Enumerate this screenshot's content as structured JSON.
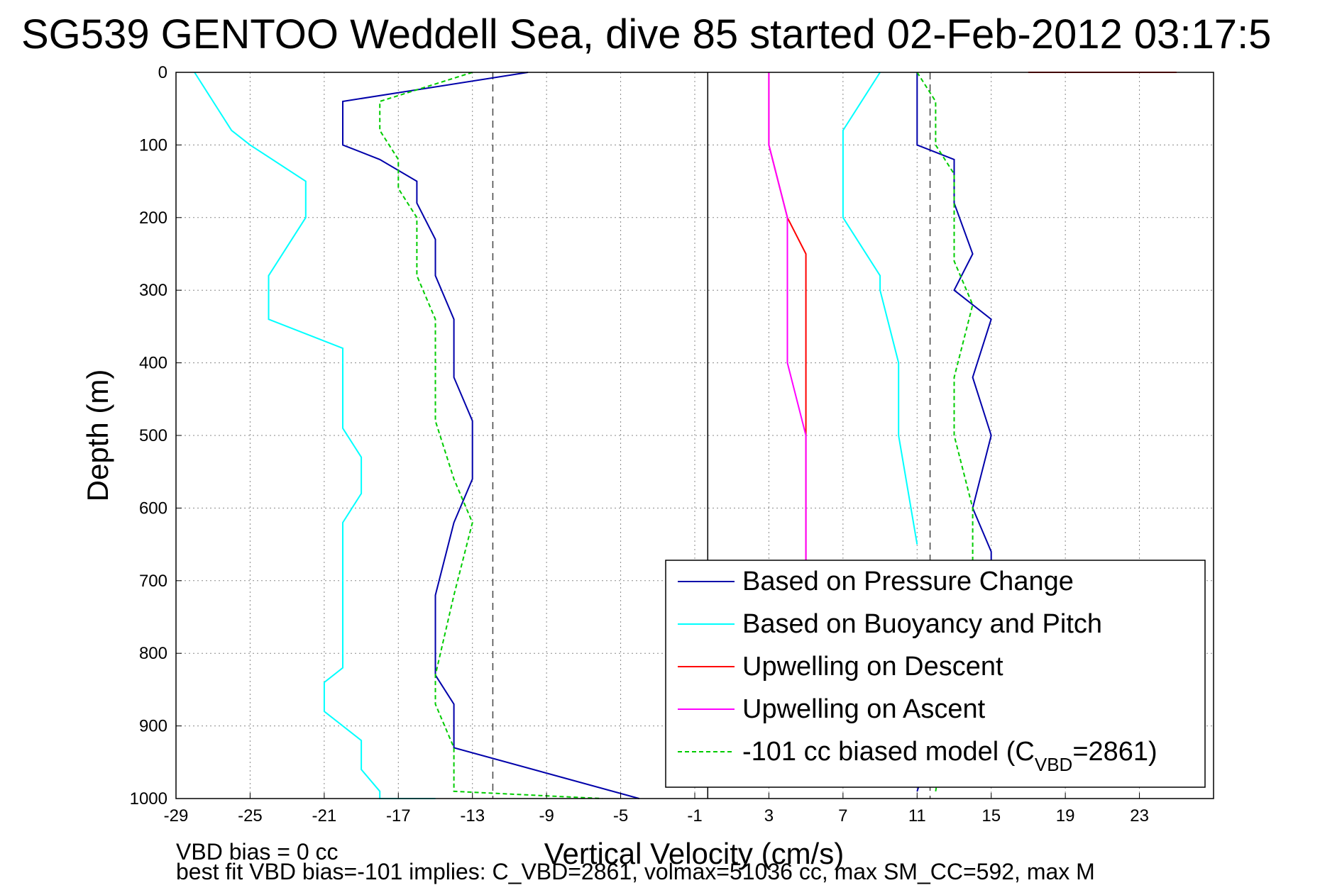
{
  "chart_data": {
    "type": "line",
    "title": "SG539 GENTOO Weddell Sea, dive 85 started 02-Feb-2012 03:17:5",
    "xlabel": "Vertical Velocity (cm/s)",
    "ylabel": "Depth (m)",
    "xlim": [
      -29,
      27
    ],
    "ylim": [
      1000,
      0
    ],
    "x_ticks": [
      -29,
      -25,
      -21,
      -17,
      -13,
      -9,
      -5,
      -1,
      3,
      7,
      11,
      15,
      19,
      23
    ],
    "y_ticks": [
      0,
      100,
      200,
      300,
      400,
      500,
      600,
      700,
      800,
      900,
      1000
    ],
    "grid": true,
    "legend_position": "bottom-right",
    "reference_lines": {
      "solid_x": [
        -0.3
      ],
      "dashed_x": [
        -11.9,
        11.7
      ]
    },
    "series": [
      {
        "name": "Based on Pressure Change",
        "color": "#0000aa",
        "line_style": "solid",
        "segments": [
          {
            "x": [
              -10,
              -20,
              -20,
              -18,
              -16,
              -16,
              -15,
              -15,
              -14,
              -14,
              -13,
              -13,
              -14,
              -15,
              -15,
              -14,
              -14,
              -4
            ],
            "y": [
              0,
              40,
              100,
              120,
              150,
              180,
              230,
              280,
              340,
              420,
              480,
              560,
              620,
              720,
              830,
              870,
              930,
              1000
            ]
          },
          {
            "x": [
              11,
              11,
              13,
              13,
              14,
              13,
              15,
              14,
              15,
              14,
              15,
              15,
              11
            ],
            "y": [
              0,
              100,
              120,
              180,
              250,
              300,
              340,
              420,
              500,
              600,
              660,
              680,
              990
            ]
          }
        ]
      },
      {
        "name": "Based on Buoyancy and Pitch",
        "color": "#00ffff",
        "line_style": "solid",
        "segments": [
          {
            "x": [
              -28,
              -27,
              -26,
              -25,
              -22,
              -22,
              -24,
              -24,
              -20,
              -20,
              -20,
              -19,
              -19,
              -20,
              -20,
              -21,
              -21,
              -19,
              -19,
              -18,
              -18,
              -15
            ],
            "y": [
              0,
              40,
              80,
              100,
              150,
              200,
              280,
              340,
              380,
              460,
              490,
              530,
              580,
              620,
              820,
              840,
              880,
              920,
              960,
              990,
              1000,
              1000
            ]
          },
          {
            "x": [
              9,
              7,
              7,
              9,
              9,
              10,
              10,
              10,
              11
            ],
            "y": [
              0,
              80,
              200,
              280,
              300,
              400,
              430,
              500,
              650
            ]
          }
        ]
      },
      {
        "name": "Upwelling on Descent",
        "color": "#ff0000",
        "line_style": "solid",
        "segments": [
          {
            "x": [
              3,
              3,
              4,
              5,
              5,
              5,
              5,
              5,
              5,
              5,
              5
            ],
            "y": [
              0,
              100,
              200,
              250,
              300,
              400,
              500,
              550,
              600,
              650,
              680
            ]
          },
          {
            "x": [
              17,
              25
            ],
            "y": [
              0,
              0
            ]
          }
        ]
      },
      {
        "name": "Upwelling on Ascent",
        "color": "#ff00ff",
        "line_style": "solid",
        "segments": [
          {
            "x": [
              3,
              3,
              4,
              4,
              4,
              5,
              5,
              5
            ],
            "y": [
              0,
              100,
              200,
              300,
              400,
              500,
              600,
              680
            ]
          }
        ]
      },
      {
        "name": "-101 cc biased model (C",
        "name_sub": "VBD",
        "name_suffix": "=2861)",
        "color": "#00cc00",
        "line_style": "dashed",
        "segments": [
          {
            "x": [
              -13,
              -18,
              -18,
              -17,
              -17,
              -16,
              -16,
              -15,
              -15,
              -15,
              -14,
              -13,
              -14,
              -15,
              -15,
              -14,
              -14,
              -6
            ],
            "y": [
              0,
              40,
              80,
              120,
              160,
              200,
              280,
              340,
              420,
              480,
              560,
              620,
              720,
              830,
              870,
              930,
              990,
              1000
            ]
          },
          {
            "x": [
              11,
              12,
              12,
              13,
              13,
              13,
              14,
              13,
              13,
              14,
              14,
              14,
              12
            ],
            "y": [
              0,
              40,
              100,
              140,
              200,
              260,
              320,
              420,
              500,
              600,
              640,
              680,
              990
            ]
          }
        ]
      }
    ],
    "footer": {
      "line1": "VBD bias = 0 cc",
      "line2": "best fit VBD bias=-101 implies: C_VBD=2861, volmax=51036 cc, max SM_CC=592, max M"
    }
  }
}
